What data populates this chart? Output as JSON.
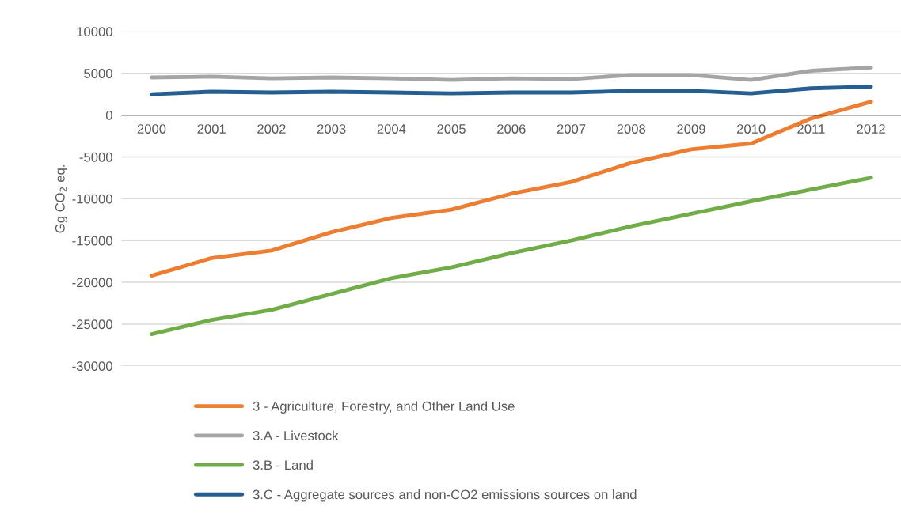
{
  "chart_data": {
    "type": "line",
    "ylabel": "Gg CO$_{2}$ eq.",
    "categories": [
      "2000",
      "2001",
      "2002",
      "2003",
      "2004",
      "2005",
      "2006",
      "2007",
      "2008",
      "2009",
      "2010",
      "2011",
      "2012"
    ],
    "series": [
      {
        "name": "3 - Agriculture, Forestry, and Other Land Use",
        "color": "#ed7d31",
        "values": [
          -19200,
          -17100,
          -16200,
          -14000,
          -12300,
          -11300,
          -9400,
          -8000,
          -5700,
          -4100,
          -3400,
          -400,
          1600
        ]
      },
      {
        "name": "3.A - Livestock",
        "color": "#a5a5a5",
        "values": [
          4500,
          4600,
          4400,
          4500,
          4400,
          4200,
          4400,
          4300,
          4800,
          4800,
          4200,
          5300,
          5700
        ]
      },
      {
        "name": "3.B - Land",
        "color": "#70ad47",
        "values": [
          -26200,
          -24500,
          -23300,
          -21400,
          -19500,
          -18200,
          -16500,
          -15000,
          -13300,
          -11800,
          -10300,
          -8900,
          -7500
        ]
      },
      {
        "name": "3.C - Aggregate sources and non-CO2 emissions sources on land",
        "color": "#255e91",
        "values": [
          2500,
          2800,
          2700,
          2800,
          2700,
          2600,
          2700,
          2700,
          2900,
          2900,
          2600,
          3200,
          3400
        ]
      }
    ],
    "ylim": [
      -30000,
      10000
    ],
    "yticks": [
      -30000,
      -25000,
      -20000,
      -15000,
      -10000,
      -5000,
      0,
      5000,
      10000
    ],
    "grid": "y",
    "legend": "bottom",
    "marker": "none",
    "line_style": "solid"
  }
}
